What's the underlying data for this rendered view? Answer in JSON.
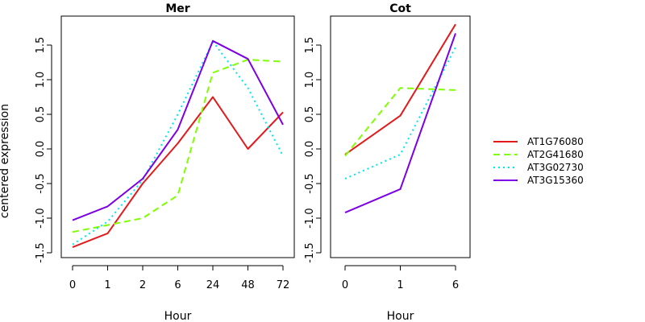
{
  "chart_data": [
    {
      "type": "line",
      "title": "Mer",
      "xlabel": "Hour",
      "ylabel": "centered expression",
      "categories": [
        "0",
        "1",
        "2",
        "6",
        "24",
        "48",
        "72"
      ],
      "ylim": [
        -1.5,
        1.8
      ],
      "yticks": [
        "-1.5",
        "-1.0",
        "-0.5",
        "0.0",
        "0.5",
        "1.0",
        "1.5"
      ],
      "series": [
        {
          "name": "AT1G76080",
          "color": "#e31a1c",
          "dash": "solid",
          "values": [
            -1.42,
            -1.22,
            -0.5,
            0.08,
            0.75,
            0.0,
            0.53
          ]
        },
        {
          "name": "AT2G41680",
          "color": "#7fff00",
          "dash": "dashed",
          "values": [
            -1.2,
            -1.1,
            -1.0,
            -0.67,
            1.1,
            1.29,
            1.26
          ]
        },
        {
          "name": "AT3G02730",
          "color": "#00e5ee",
          "dash": "dotted",
          "values": [
            -1.38,
            -1.05,
            -0.45,
            0.5,
            1.55,
            0.88,
            -0.1
          ]
        },
        {
          "name": "AT3G15360",
          "color": "#7b00e6",
          "dash": "solid",
          "values": [
            -1.03,
            -0.83,
            -0.43,
            0.28,
            1.56,
            1.3,
            0.35
          ]
        }
      ]
    },
    {
      "type": "line",
      "title": "Cot",
      "xlabel": "Hour",
      "ylabel": "",
      "categories": [
        "0",
        "1",
        "6"
      ],
      "ylim": [
        -1.5,
        1.8
      ],
      "yticks": [
        "-1.5",
        "-1.0",
        "-0.5",
        "0.0",
        "0.5",
        "1.0",
        "1.5"
      ],
      "series": [
        {
          "name": "AT1G76080",
          "color": "#e31a1c",
          "dash": "solid",
          "values": [
            -0.08,
            0.48,
            1.8
          ]
        },
        {
          "name": "AT2G41680",
          "color": "#7fff00",
          "dash": "dashed",
          "values": [
            -0.1,
            0.88,
            0.85
          ]
        },
        {
          "name": "AT3G02730",
          "color": "#00e5ee",
          "dash": "dotted",
          "values": [
            -0.43,
            -0.08,
            1.47
          ]
        },
        {
          "name": "AT3G15360",
          "color": "#7b00e6",
          "dash": "solid",
          "values": [
            -0.92,
            -0.58,
            1.67
          ]
        }
      ]
    }
  ],
  "legend": {
    "placement": "right",
    "items": [
      {
        "label": "AT1G76080",
        "color": "#e31a1c",
        "dash": "solid"
      },
      {
        "label": "AT2G41680",
        "color": "#7fff00",
        "dash": "dashed"
      },
      {
        "label": "AT3G02730",
        "color": "#00e5ee",
        "dash": "dotted"
      },
      {
        "label": "AT3G15360",
        "color": "#7b00e6",
        "dash": "solid"
      }
    ]
  }
}
